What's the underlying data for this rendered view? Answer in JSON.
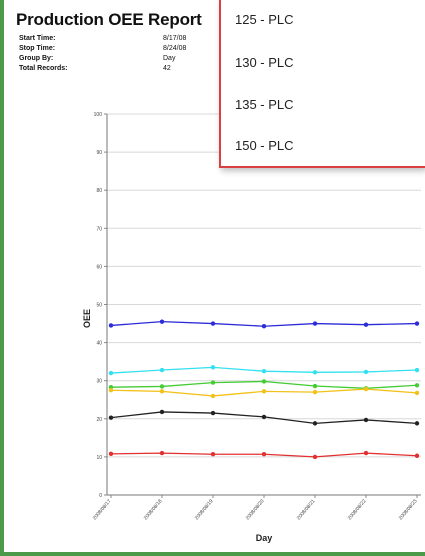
{
  "report": {
    "title": "Production OEE Report",
    "meta": [
      {
        "label": "Start Time:",
        "value": "8/17/08"
      },
      {
        "label": "Stop Time:",
        "value": "8/24/08"
      },
      {
        "label": "Group By:",
        "value": "Day"
      },
      {
        "label": "Total Records:",
        "value": "42"
      }
    ]
  },
  "dropdown": {
    "items": [
      "125 - PLC",
      "130 - PLC",
      "135 - PLC",
      "150 - PLC"
    ]
  },
  "chart_data": {
    "type": "line",
    "xlabel": "Day",
    "ylabel": "OEE",
    "ylim": [
      0,
      100
    ],
    "yticks": [
      0,
      10,
      20,
      30,
      40,
      50,
      60,
      70,
      80,
      90,
      100
    ],
    "categories": [
      "2008/08/17",
      "2008/08/18",
      "2008/08/19",
      "2008/08/20",
      "2008/08/21",
      "2008/08/22",
      "2008/08/23"
    ],
    "grid": true,
    "series": [
      {
        "color": "#2b2bd9",
        "values": [
          44.5,
          45.5,
          45.0,
          44.3,
          45.0,
          44.7,
          45.0
        ]
      },
      {
        "color": "#33e0f0",
        "values": [
          32.0,
          32.8,
          33.5,
          32.5,
          32.2,
          32.3,
          32.8
        ]
      },
      {
        "color": "#44cc33",
        "values": [
          28.3,
          28.5,
          29.5,
          29.8,
          28.6,
          28.0,
          28.8
        ]
      },
      {
        "color": "#f2c21a",
        "values": [
          27.5,
          27.2,
          26.0,
          27.2,
          27.0,
          27.8,
          26.8
        ]
      },
      {
        "color": "#222222",
        "values": [
          20.3,
          21.8,
          21.5,
          20.5,
          18.8,
          19.7,
          18.8
        ]
      },
      {
        "color": "#e23030",
        "values": [
          10.8,
          11.0,
          10.7,
          10.7,
          10.0,
          11.0,
          10.3
        ]
      }
    ]
  }
}
